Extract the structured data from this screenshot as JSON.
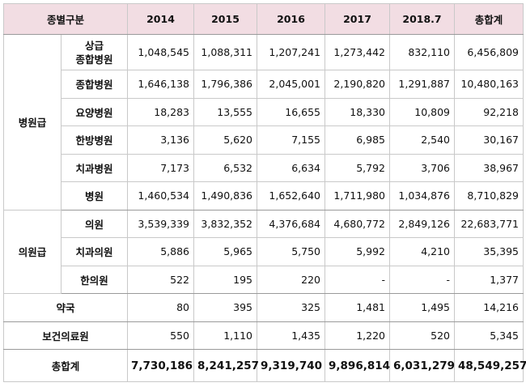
{
  "header": {
    "type_label": "종별구분",
    "years": [
      "2014",
      "2015",
      "2016",
      "2017",
      "2018.7"
    ],
    "total_label": "총합계"
  },
  "groups": {
    "hospital": "병원급",
    "clinic": "의원급"
  },
  "rows": [
    {
      "label_line1": "상급",
      "label_line2": "종합병원",
      "values": [
        "1,048,545",
        "1,088,311",
        "1,207,241",
        "1,273,442",
        "832,110",
        "6,456,809"
      ]
    },
    {
      "label": "종합병원",
      "values": [
        "1,646,138",
        "1,796,386",
        "2,045,001",
        "2,190,820",
        "1,291,887",
        "10,480,163"
      ]
    },
    {
      "label": "요양병원",
      "values": [
        "18,283",
        "13,555",
        "16,655",
        "18,330",
        "10,809",
        "92,218"
      ]
    },
    {
      "label": "한방병원",
      "values": [
        "3,136",
        "5,620",
        "7,155",
        "6,985",
        "2,540",
        "30,167"
      ]
    },
    {
      "label": "치과병원",
      "values": [
        "7,173",
        "6,532",
        "6,634",
        "5,792",
        "3,706",
        "38,967"
      ]
    },
    {
      "label": "병원",
      "values": [
        "1,460,534",
        "1,490,836",
        "1,652,640",
        "1,711,980",
        "1,034,876",
        "8,710,829"
      ]
    },
    {
      "label": "의원",
      "values": [
        "3,539,339",
        "3,832,352",
        "4,376,684",
        "4,680,772",
        "2,849,126",
        "22,683,771"
      ]
    },
    {
      "label": "치과의원",
      "values": [
        "5,886",
        "5,965",
        "5,750",
        "5,992",
        "4,210",
        "35,395"
      ]
    },
    {
      "label": "한의원",
      "values": [
        "522",
        "195",
        "220",
        "-",
        "-",
        "1,377"
      ]
    },
    {
      "label": "약국",
      "values": [
        "80",
        "395",
        "325",
        "1,481",
        "1,495",
        "14,216"
      ]
    },
    {
      "label": "보건의료원",
      "values": [
        "550",
        "1,110",
        "1,435",
        "1,220",
        "520",
        "5,345"
      ]
    },
    {
      "label": "총합계",
      "values": [
        "7,730,186",
        "8,241,257",
        "9,319,740",
        "9,896,814",
        "6,031,279",
        "48,549,257"
      ]
    }
  ]
}
